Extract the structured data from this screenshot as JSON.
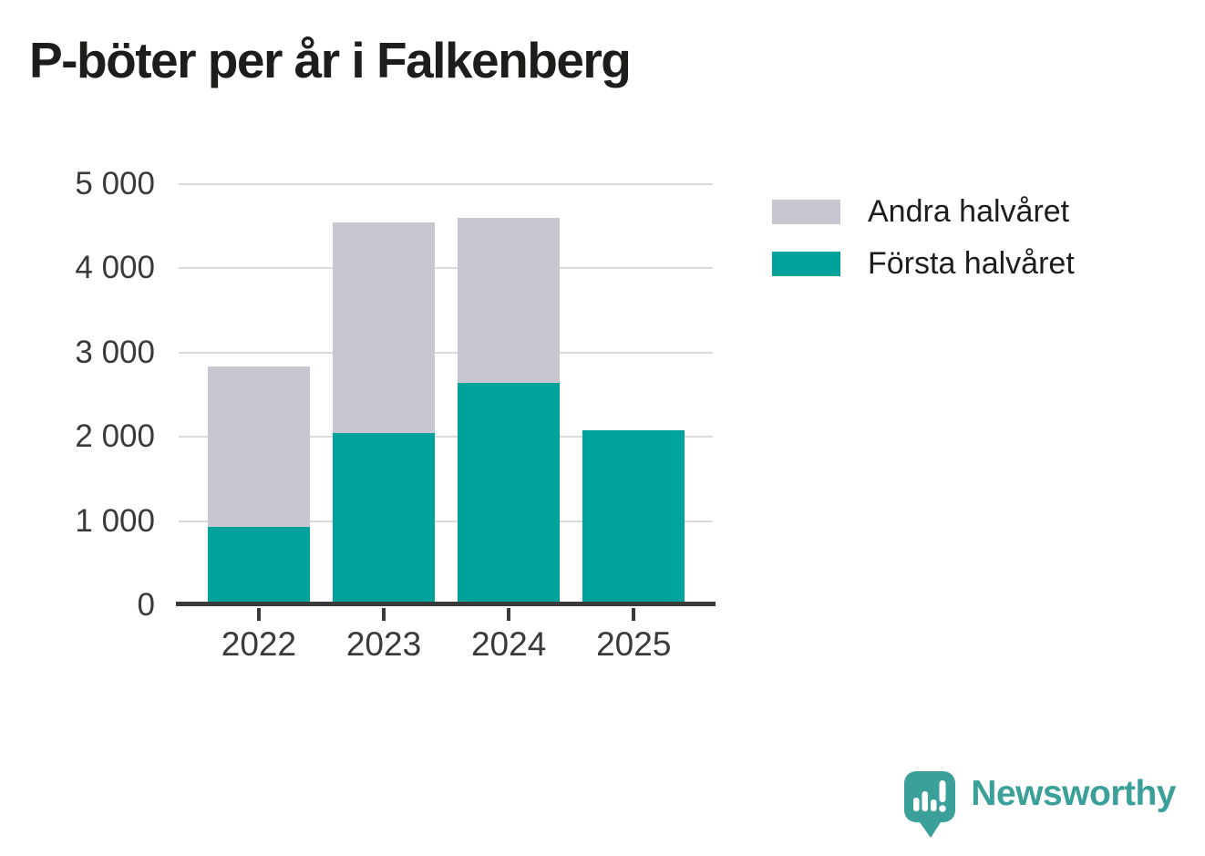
{
  "title": "P-böter per år i Falkenberg",
  "chart_data": {
    "type": "bar",
    "stacked": true,
    "title": "P-böter per år i Falkenberg",
    "categories": [
      "2022",
      "2023",
      "2024",
      "2025"
    ],
    "series": [
      {
        "name": "Första halvåret",
        "color": "#00A39B",
        "values": [
          930,
          2050,
          2640,
          2080
        ]
      },
      {
        "name": "Andra halvåret",
        "color": "#C8C6D0",
        "values": [
          1910,
          2500,
          1960,
          0
        ]
      }
    ],
    "stack_totals": [
      2840,
      4550,
      4600,
      2080
    ],
    "xlabel": "",
    "ylabel": "",
    "ylim": [
      0,
      5000
    ],
    "yticks": [
      0,
      1000,
      2000,
      3000,
      4000,
      5000
    ],
    "ytick_labels": [
      "0",
      "1 000",
      "2 000",
      "3 000",
      "4 000",
      "5 000"
    ],
    "grid": "horizontal",
    "legend_position": "right-top"
  },
  "legend": {
    "items": [
      {
        "label": "Andra halvåret",
        "color": "#C8C6D0"
      },
      {
        "label": "Första halvåret",
        "color": "#00A39B"
      }
    ]
  },
  "branding": {
    "logo_text": "Newsworthy",
    "logo_color": "#3BA099",
    "logo_icon": "speech-bubble-bar-chart-icon"
  },
  "colors": {
    "first_half": "#00A39B",
    "second_half": "#C8C6D0",
    "gridline": "#DBDBDB",
    "axis": "#3A3A3A",
    "tick_text": "#3A3A3A",
    "title_text": "#1D1D1B",
    "background": "#FFFFFF"
  }
}
